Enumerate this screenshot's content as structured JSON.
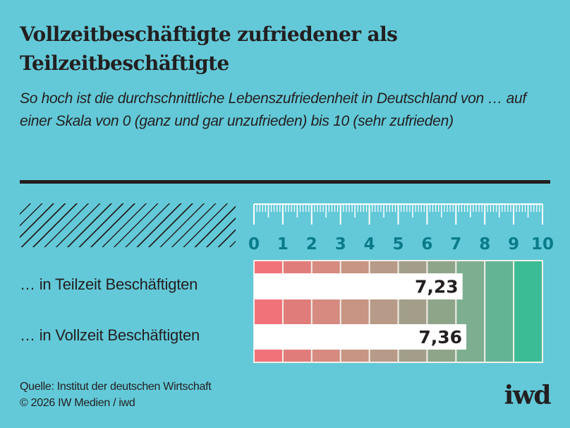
{
  "header": {
    "title": "Vollzeitbeschäftigte zufriedener als Teilzeitbeschäftigte",
    "subtitle": "So hoch ist die durchschnittliche Lebenszufriedenheit in Deutschland von … auf einer Skala von 0 (ganz und gar unzufrieden) bis 10 (sehr zufrieden)"
  },
  "chart_data": {
    "type": "bar",
    "orientation": "horizontal",
    "title": "Vollzeitbeschäftigte zufriedener als Teilzeitbeschäftigte",
    "xlabel": "",
    "ylabel": "",
    "xlim": [
      0,
      10
    ],
    "ticks": [
      "0",
      "1",
      "2",
      "3",
      "4",
      "5",
      "6",
      "7",
      "8",
      "9",
      "10"
    ],
    "categories": [
      "… in Teilzeit Beschäftigten",
      "… in Vollzeit Beschäftigten"
    ],
    "values": [
      7.23,
      7.36
    ],
    "value_labels": [
      "7,23",
      "7,36"
    ],
    "scale_colors": [
      "#f2727a",
      "#e07d7b",
      "#d68a80",
      "#c89483",
      "#b79a87",
      "#a29e8a",
      "#8fa58a",
      "#7eae90",
      "#62b495",
      "#3cbc94"
    ]
  },
  "colors": {
    "background": "#63c9d8",
    "text": "#231f20",
    "tick_label": "#0a7b8a",
    "ruler": "#ffffff"
  },
  "footer": {
    "source": "Quelle: Institut der deutschen Wirtschaft",
    "copyright": "© 2026 IW Medien / iwd",
    "logo": "iwd"
  }
}
